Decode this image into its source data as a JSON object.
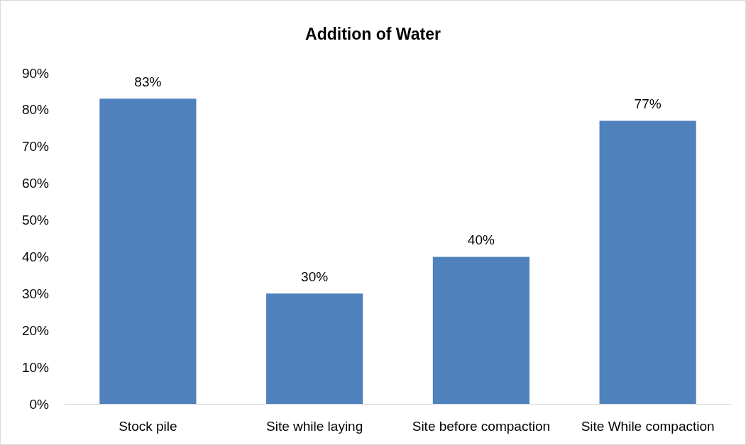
{
  "chart_data": {
    "type": "bar",
    "title": "Addition of Water",
    "categories": [
      "Stock pile",
      "Site while laying",
      "Site before compaction",
      "Site While compaction"
    ],
    "values": [
      83,
      30,
      40,
      77
    ],
    "value_labels": [
      "83%",
      "30%",
      "40%",
      "77%"
    ],
    "color": "#4f81bd",
    "ylim": [
      0,
      90
    ],
    "yticks": [
      {
        "value": 0,
        "label": "0%"
      },
      {
        "value": 10,
        "label": "10%"
      },
      {
        "value": 20,
        "label": "20%"
      },
      {
        "value": 30,
        "label": "30%"
      },
      {
        "value": 40,
        "label": "40%"
      },
      {
        "value": 50,
        "label": "50%"
      },
      {
        "value": 60,
        "label": "60%"
      },
      {
        "value": 70,
        "label": "70%"
      },
      {
        "value": 80,
        "label": "80%"
      },
      {
        "value": 90,
        "label": "90%"
      }
    ],
    "grid": false
  }
}
